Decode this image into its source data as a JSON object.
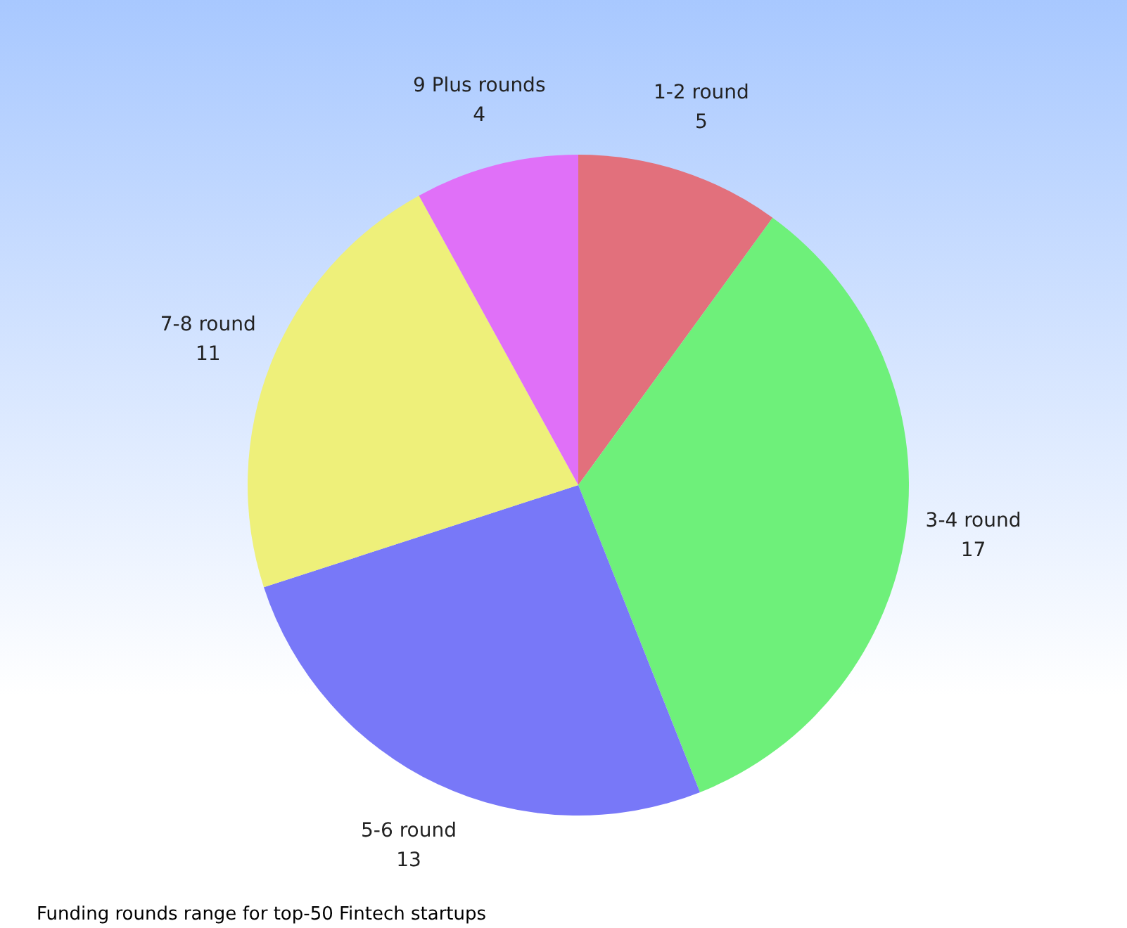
{
  "chart_data": {
    "type": "pie",
    "categories": [
      "1-2 round",
      "3-4 round",
      "5-6 round",
      "7-8 round",
      "9 Plus rounds"
    ],
    "values": [
      5,
      17,
      13,
      11,
      4
    ],
    "colors": [
      "#e2707c",
      "#6ef07a",
      "#7878f8",
      "#eef07a",
      "#e070f8"
    ],
    "data_labels": true,
    "annotations": [
      "Funding rounds range for top-50 Fintech startups"
    ]
  }
}
